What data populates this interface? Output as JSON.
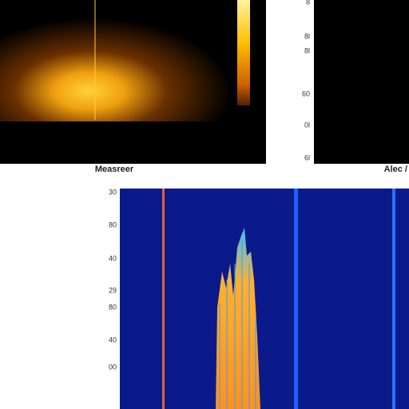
{
  "panels": {
    "top_left": {
      "label": "Measreer"
    },
    "top_right": {
      "label": "Alec /",
      "ticks": [
        "8",
        "8l",
        "8l",
        "60",
        "0l",
        "6l"
      ]
    },
    "bottom": {
      "ticks": [
        "30",
        "80",
        "40",
        "29",
        "80",
        "40",
        "00"
      ]
    }
  }
}
